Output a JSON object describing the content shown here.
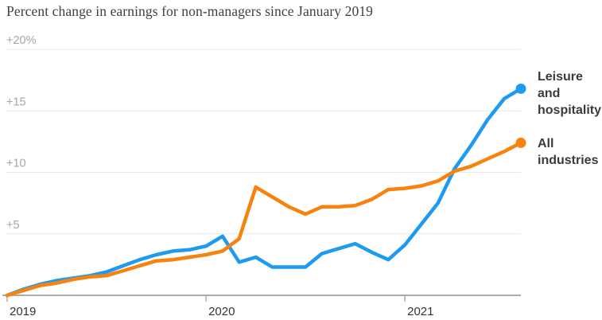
{
  "title": "Percent change in earnings for non-managers since January 2019",
  "legend": {
    "leisure_label": "Leisure and hospitality",
    "all_label": "All industries"
  },
  "colors": {
    "leisure_blue": "#1e9bf0",
    "all_orange": "#f7820d",
    "gridline": "#e9e9e9",
    "baseline": "#ababab",
    "y_label_gray": "#a6a6a6",
    "x_label_dark": "#333333"
  },
  "chart_data": {
    "type": "line",
    "title": "Percent change in earnings for non-managers since January 2019",
    "unit": "percent change since January 2019",
    "grid": "horizontal",
    "legend_position": "right",
    "ylim": [
      0,
      20
    ],
    "x": [
      "Jan 2019",
      "Feb 2019",
      "Mar 2019",
      "Apr 2019",
      "May 2019",
      "Jun 2019",
      "Jul 2019",
      "Aug 2019",
      "Sep 2019",
      "Oct 2019",
      "Nov 2019",
      "Dec 2019",
      "Jan 2020",
      "Feb 2020",
      "Mar 2020",
      "Apr 2020",
      "May 2020",
      "Jun 2020",
      "Jul 2020",
      "Aug 2020",
      "Sep 2020",
      "Oct 2020",
      "Nov 2020",
      "Dec 2020",
      "Jan 2021",
      "Feb 2021",
      "Mar 2021",
      "Apr 2021",
      "May 2021",
      "Jun 2021",
      "Jul 2021",
      "Aug 2021"
    ],
    "series": [
      {
        "name": "Leisure and hospitality",
        "color": "#1e9bf0",
        "values": [
          0,
          0.5,
          0.9,
          1.2,
          1.4,
          1.6,
          1.9,
          2.4,
          2.9,
          3.3,
          3.6,
          3.7,
          4.0,
          4.8,
          2.7,
          3.1,
          2.3,
          2.3,
          2.3,
          3.4,
          3.8,
          4.2,
          3.5,
          2.9,
          4.1,
          5.8,
          7.5,
          10.3,
          12.2,
          14.3,
          16.0,
          16.8
        ]
      },
      {
        "name": "All industries",
        "color": "#f7820d",
        "values": [
          0,
          0.4,
          0.8,
          1.0,
          1.3,
          1.5,
          1.6,
          2.0,
          2.4,
          2.8,
          2.9,
          3.1,
          3.3,
          3.6,
          4.6,
          8.8,
          8.0,
          7.2,
          6.6,
          7.2,
          7.2,
          7.3,
          7.8,
          8.6,
          8.7,
          8.9,
          9.3,
          10.1,
          10.5,
          11.1,
          11.7,
          12.4
        ]
      }
    ],
    "y_axis": {
      "ticks": [
        {
          "value": 5,
          "label": "+5"
        },
        {
          "value": 10,
          "label": "+10"
        },
        {
          "value": 15,
          "label": "+15"
        },
        {
          "value": 20,
          "label": "+20%"
        }
      ]
    },
    "x_axis": {
      "ticks": [
        {
          "index": 0,
          "label": "2019"
        },
        {
          "index": 12,
          "label": "2020"
        },
        {
          "index": 24,
          "label": "2021"
        }
      ]
    }
  }
}
